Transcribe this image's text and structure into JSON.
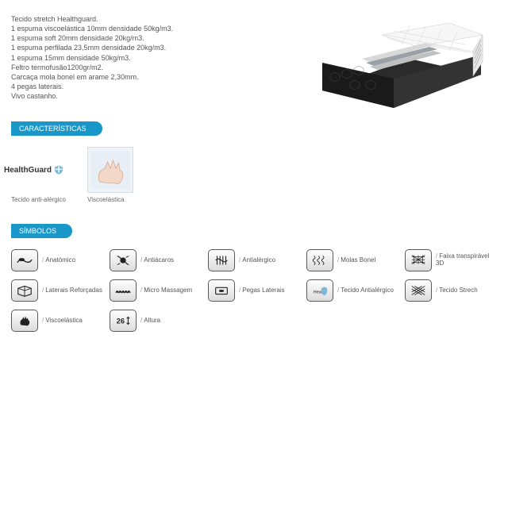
{
  "specs": [
    "Tecido stretch Healthguard.",
    "1 espuma viscoelástica 10mm densidade 50kg/m3.",
    "1 espuma soft 20mm densidade 20kg/m3.",
    "1 espuma perfilada 23,5mm densidade 20kg/m3.",
    "1 espuma 15mm densidade 50kg/m3.",
    "Feltro termofusão1200gr/m2.",
    "Carcaça mola bonel em arame 2,30mm.",
    "4 pegas laterais.",
    "Vivo castanho."
  ],
  "tabs": {
    "characteristics": "CARACTERÍSTICAS",
    "symbols": "SÍMBOLOS"
  },
  "features": [
    {
      "caption": "Tecido anti-alérgico",
      "brand": "HealthGuard",
      "icon": "healthguard-icon"
    },
    {
      "caption": "Viscoelástica",
      "icon": "hand-foam-icon"
    }
  ],
  "symbols": [
    {
      "label": "Anatómico",
      "icon": "anatomic-icon"
    },
    {
      "label": "Antiácaros",
      "icon": "antimite-icon"
    },
    {
      "label": "Antialérgico",
      "icon": "antiallergic-icon"
    },
    {
      "label": "Molas Bonel",
      "icon": "bonel-springs-icon"
    },
    {
      "label": "Faixa transpirável 3D",
      "icon": "breathable-3d-icon"
    },
    {
      "label": "Laterais Reforçadas",
      "icon": "reinforced-sides-icon"
    },
    {
      "label": "Micro Massagem",
      "icon": "micro-massage-icon"
    },
    {
      "label": "Pegas Laterais",
      "icon": "side-handles-icon"
    },
    {
      "label": "Tecido Antialérgico",
      "icon": "antiallergic-fabric-icon"
    },
    {
      "label": "Tecido Strech",
      "icon": "stretch-fabric-icon"
    },
    {
      "label": "Viscoelástica",
      "icon": "viscoelastic-icon"
    },
    {
      "label": "Altura",
      "icon": "height-icon",
      "badge": "26"
    }
  ],
  "colors": {
    "tab_bg": "#1a97c9",
    "icon_border": "#5a5a5a",
    "text": "#555555"
  }
}
